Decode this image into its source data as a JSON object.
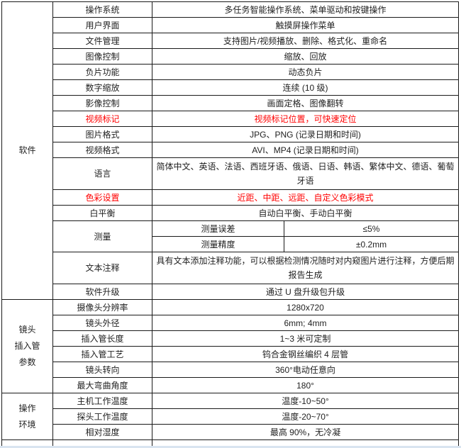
{
  "colors": {
    "border": "#1a1a1a",
    "text": "#1f1f1f",
    "red_text": "#ff0000",
    "background": "#ffffff"
  },
  "table": {
    "sections": [
      {
        "header_lines": [
          "软件"
        ],
        "rows": [
          {
            "label": "操作系统",
            "value": "多任务智能操作系统、菜单驱动和按键操作"
          },
          {
            "label": "用户界面",
            "value": "触摸屏操作菜单"
          },
          {
            "label": "文件管理",
            "value": "支持图片/视频播放、删除、格式化、重命名"
          },
          {
            "label": "图像控制",
            "value": "缩放、回放"
          },
          {
            "label": "负片功能",
            "value": "动态负片"
          },
          {
            "label": "数字缩放",
            "value": "连续 (10 级)"
          },
          {
            "label": "影像控制",
            "value": "画面定格、图像翻转"
          },
          {
            "label": "视频标记",
            "value": "视频标记位置，可快速定位",
            "red": true
          },
          {
            "label": "图片格式",
            "value": "JPG、PNG (记录日期和时间)"
          },
          {
            "label": "视频格式",
            "value": "AVI、MP4 (记录日期和时间)"
          },
          {
            "label": "语言",
            "value": "简体中文、英语、法语、西班牙语、俄语、日语、韩语、繁体中文、德语、葡萄牙语",
            "tall": true
          },
          {
            "label": "色彩设置",
            "value": "近距、中距、远距、自定义色彩模式",
            "red": true
          },
          {
            "label": "白平衡",
            "value": "自动白平衡、手动白平衡"
          },
          {
            "label": "测量",
            "subrows": [
              {
                "sublabel": "测量误差",
                "value": "≤5%"
              },
              {
                "sublabel": "测量精度",
                "value": "±0.2mm"
              }
            ]
          },
          {
            "label": "文本注释",
            "value": "具有文本添加注释功能，可以根据检测情况随时对内窥图片进行注释，方便后期报告生成",
            "tall": true
          },
          {
            "label": "软件升级",
            "value": "通过 U 盘升级包升级"
          }
        ]
      },
      {
        "header_lines": [
          "镜头",
          "插入管",
          "参数"
        ],
        "rows": [
          {
            "label": "摄像头分辨率",
            "value": "1280x720"
          },
          {
            "label": "镜头外径",
            "value": "6mm; 4mm"
          },
          {
            "label": "插入管长度",
            "value": "1~3 米可定制"
          },
          {
            "label": "插入管工艺",
            "value": "钨合金钢丝编织 4 层管"
          },
          {
            "label": "镜头转向",
            "value": "360°电动任意向"
          },
          {
            "label": "最大弯曲角度",
            "value": "180°"
          }
        ]
      },
      {
        "header_lines": [
          "操作",
          "环境"
        ],
        "rows": [
          {
            "label": "主机工作温度",
            "value": "温度-10~50°"
          },
          {
            "label": "探头工作温度",
            "value": "温度-20~70°"
          },
          {
            "label": "相对湿度",
            "value": "最高 90%，无冷凝"
          }
        ]
      }
    ],
    "has_partial_bottom_row": true
  }
}
